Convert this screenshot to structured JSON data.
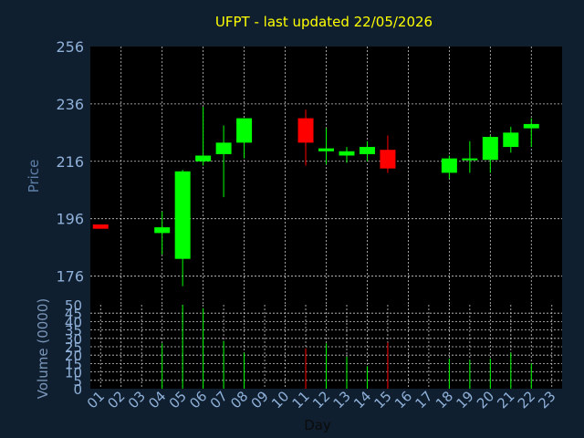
{
  "chart_data": [
    {
      "type": "candlestick",
      "title": "UFPT - last updated 22/05/2026",
      "xlabel": "Day",
      "ylabel": "Price",
      "ylim": [
        166,
        256
      ],
      "yticks": [
        176,
        196,
        216,
        236,
        256
      ],
      "xlim": [
        0.5,
        23.5
      ],
      "x": [
        "01",
        "02",
        "03",
        "04",
        "05",
        "06",
        "07",
        "08",
        "09",
        "10",
        "11",
        "12",
        "13",
        "14",
        "15",
        "16",
        "17",
        "18",
        "19",
        "20",
        "21",
        "22",
        "23"
      ],
      "grid": true,
      "colors": {
        "up": "#00ff00",
        "down": "#ff0000"
      },
      "candles": [
        {
          "day": 1,
          "open": 194,
          "close": 192.5,
          "high": 194,
          "low": 192.5
        },
        {
          "day": 4,
          "open": 191,
          "close": 193,
          "high": 198.5,
          "low": 183.5
        },
        {
          "day": 5,
          "open": 182,
          "close": 212.5,
          "high": 213,
          "low": 172.5
        },
        {
          "day": 6,
          "open": 216,
          "close": 218,
          "high": 235,
          "low": 214.5
        },
        {
          "day": 7,
          "open": 218.5,
          "close": 222.5,
          "high": 228.5,
          "low": 203.5
        },
        {
          "day": 8,
          "open": 222.5,
          "close": 231,
          "high": 231,
          "low": 217
        },
        {
          "day": 11,
          "open": 231,
          "close": 222.5,
          "high": 234,
          "low": 214.5
        },
        {
          "day": 12,
          "open": 219.5,
          "close": 220.5,
          "high": 227.5,
          "low": 215
        },
        {
          "day": 13,
          "open": 218,
          "close": 219.5,
          "high": 221,
          "low": 215.5
        },
        {
          "day": 14,
          "open": 218.5,
          "close": 221,
          "high": 223,
          "low": 216
        },
        {
          "day": 15,
          "open": 220,
          "close": 213.5,
          "high": 225,
          "low": 212
        },
        {
          "day": 18,
          "open": 212,
          "close": 217,
          "high": 218,
          "low": 210
        },
        {
          "day": 19,
          "open": 216.5,
          "close": 217,
          "high": 223,
          "low": 212
        },
        {
          "day": 20,
          "open": 216.5,
          "close": 224.5,
          "high": 225,
          "low": 212
        },
        {
          "day": 21,
          "open": 221,
          "close": 226,
          "high": 228,
          "low": 219
        },
        {
          "day": 22,
          "open": 227.5,
          "close": 229,
          "high": 231,
          "low": 221
        }
      ]
    },
    {
      "type": "bar",
      "ylabel": "Volume (0000)",
      "ylim": [
        0,
        50
      ],
      "yticks": [
        0,
        5,
        10,
        15,
        20,
        25,
        30,
        35,
        40,
        45,
        50
      ],
      "grid": true,
      "bars": [
        {
          "day": 4,
          "value": 27,
          "color": "#00ff00"
        },
        {
          "day": 5,
          "value": 50,
          "color": "#00ff00"
        },
        {
          "day": 6,
          "value": 48,
          "color": "#00ff00"
        },
        {
          "day": 7,
          "value": 28.5,
          "color": "#00ff00"
        },
        {
          "day": 8,
          "value": 21.5,
          "color": "#00ff00"
        },
        {
          "day": 11,
          "value": 24,
          "color": "#ff0000"
        },
        {
          "day": 12,
          "value": 27,
          "color": "#00ff00"
        },
        {
          "day": 13,
          "value": 19,
          "color": "#00ff00"
        },
        {
          "day": 14,
          "value": 13.5,
          "color": "#00ff00"
        },
        {
          "day": 15,
          "value": 27.5,
          "color": "#ff0000"
        },
        {
          "day": 18,
          "value": 18,
          "color": "#00ff00"
        },
        {
          "day": 19,
          "value": 17,
          "color": "#00ff00"
        },
        {
          "day": 20,
          "value": 18,
          "color": "#00ff00"
        },
        {
          "day": 21,
          "value": 21.5,
          "color": "#00ff00"
        },
        {
          "day": 22,
          "value": 15,
          "color": "#00ff00"
        }
      ]
    }
  ]
}
